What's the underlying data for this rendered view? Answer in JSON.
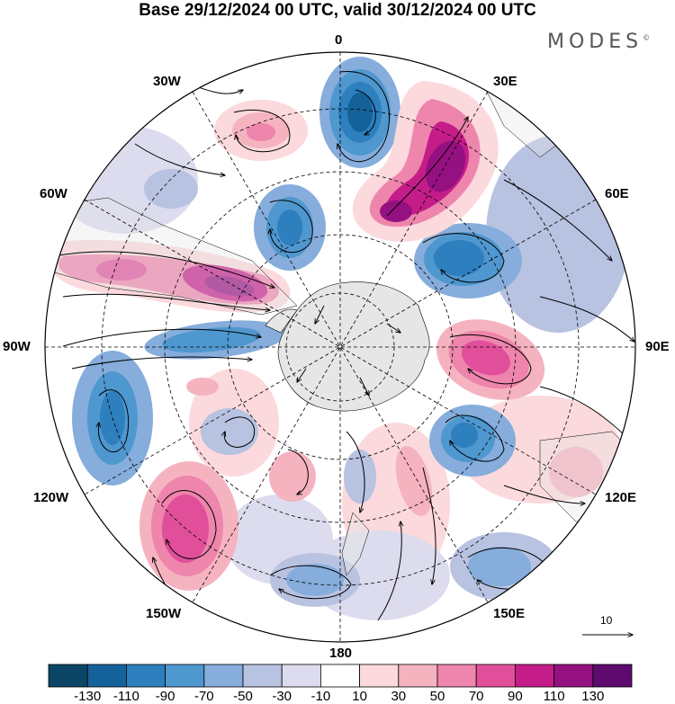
{
  "title": "Base 29/12/2024 00 UTC, valid 30/12/2024 00 UTC",
  "brand": "MODES",
  "brand_mark": "©",
  "longitude_labels": {
    "n0": "0",
    "n30e": "30E",
    "n60e": "60E",
    "n90e": "90E",
    "n120e": "120E",
    "n150e": "150E",
    "n180": "180",
    "n150w": "150W",
    "n120w": "120W",
    "n90w": "90W",
    "n60w": "60W",
    "n30w": "30W"
  },
  "reference_vector": {
    "label": "10"
  },
  "colorbar": {
    "ticks": [
      "-130",
      "-110",
      "-90",
      "-70",
      "-50",
      "-30",
      "-10",
      "10",
      "30",
      "50",
      "70",
      "90",
      "110",
      "130"
    ],
    "colors": [
      "#0b4566",
      "#15629a",
      "#2d7fbe",
      "#4f97cf",
      "#86addb",
      "#b8c2e1",
      "#dcdcee",
      "#ffffff",
      "#fbd9dc",
      "#f5b3c0",
      "#ee85ac",
      "#e14f9b",
      "#c41d8a",
      "#951080",
      "#5e0a6e"
    ]
  },
  "colors": {
    "antarctica": "#e6e6e6",
    "map_outline": "#000000",
    "graticule": "#000000"
  }
}
